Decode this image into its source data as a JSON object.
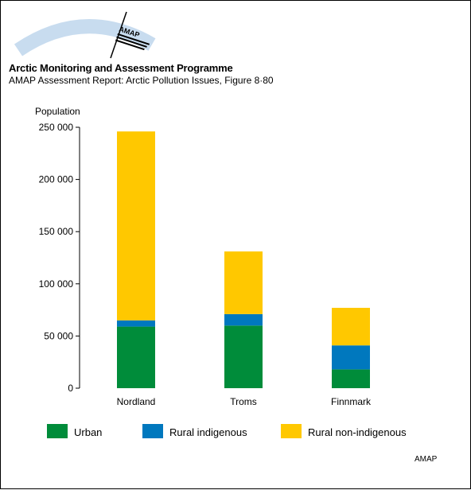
{
  "header": {
    "logo_text": "AMAP",
    "org_title": "Arctic Monitoring and Assessment Programme",
    "report_title": "AMAP Assessment Report: Arctic Pollution Issues, Figure 8·80"
  },
  "footer": {
    "credit": "AMAP"
  },
  "colors": {
    "urban": "#008C3A",
    "rural_indigenous": "#0078BE",
    "rural_non_indigenous": "#FFC800",
    "logo_arc": "#C8DCEF"
  },
  "chart_data": {
    "type": "bar",
    "stacked": true,
    "ylabel": "Population",
    "xlabel": "",
    "ylim": [
      0,
      250000
    ],
    "yticks": [
      0,
      50000,
      100000,
      150000,
      200000,
      250000
    ],
    "ytick_labels": [
      "0",
      "50 000",
      "100 000",
      "150 000",
      "200 000",
      "250 000"
    ],
    "categories": [
      "Nordland",
      "Troms",
      "Finnmark"
    ],
    "series": [
      {
        "name": "Urban",
        "values": [
          59000,
          60000,
          18000
        ]
      },
      {
        "name": "Rural indigenous",
        "values": [
          6000,
          11000,
          23000
        ]
      },
      {
        "name": "Rural non-indigenous",
        "values": [
          181000,
          60000,
          36000
        ]
      }
    ],
    "grid": false,
    "legend": "bottom"
  }
}
